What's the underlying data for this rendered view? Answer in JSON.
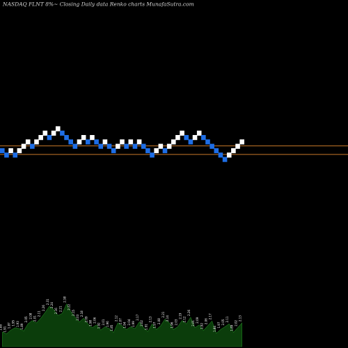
{
  "chart_data": {
    "type": "renko",
    "title": "NASDAQ FLNT 8%~  Closing Daily data  Renko  charts MunafaSutra.com",
    "y_unit": "brick steps",
    "bricks": [
      {
        "level": 0,
        "dir": "down"
      },
      {
        "level": -1,
        "dir": "down"
      },
      {
        "level": 0,
        "dir": "up"
      },
      {
        "level": -1,
        "dir": "down"
      },
      {
        "level": 0,
        "dir": "up"
      },
      {
        "level": 1,
        "dir": "up"
      },
      {
        "level": 2,
        "dir": "up"
      },
      {
        "level": 1,
        "dir": "down"
      },
      {
        "level": 2,
        "dir": "up"
      },
      {
        "level": 3,
        "dir": "up"
      },
      {
        "level": 4,
        "dir": "up"
      },
      {
        "level": 3,
        "dir": "down"
      },
      {
        "level": 4,
        "dir": "up"
      },
      {
        "level": 5,
        "dir": "up"
      },
      {
        "level": 4,
        "dir": "down"
      },
      {
        "level": 3,
        "dir": "down"
      },
      {
        "level": 2,
        "dir": "down"
      },
      {
        "level": 1,
        "dir": "down"
      },
      {
        "level": 2,
        "dir": "up"
      },
      {
        "level": 3,
        "dir": "up"
      },
      {
        "level": 2,
        "dir": "down"
      },
      {
        "level": 3,
        "dir": "up"
      },
      {
        "level": 2,
        "dir": "down"
      },
      {
        "level": 1,
        "dir": "down"
      },
      {
        "level": 2,
        "dir": "up"
      },
      {
        "level": 1,
        "dir": "down"
      },
      {
        "level": 0,
        "dir": "down"
      },
      {
        "level": 1,
        "dir": "up"
      },
      {
        "level": 2,
        "dir": "up"
      },
      {
        "level": 1,
        "dir": "down"
      },
      {
        "level": 2,
        "dir": "up"
      },
      {
        "level": 1,
        "dir": "down"
      },
      {
        "level": 2,
        "dir": "up"
      },
      {
        "level": 1,
        "dir": "down"
      },
      {
        "level": 0,
        "dir": "down"
      },
      {
        "level": -1,
        "dir": "down"
      },
      {
        "level": 0,
        "dir": "up"
      },
      {
        "level": 1,
        "dir": "up"
      },
      {
        "level": 0,
        "dir": "down"
      },
      {
        "level": 1,
        "dir": "up"
      },
      {
        "level": 2,
        "dir": "up"
      },
      {
        "level": 3,
        "dir": "up"
      },
      {
        "level": 4,
        "dir": "up"
      },
      {
        "level": 3,
        "dir": "down"
      },
      {
        "level": 2,
        "dir": "down"
      },
      {
        "level": 3,
        "dir": "up"
      },
      {
        "level": 4,
        "dir": "up"
      },
      {
        "level": 3,
        "dir": "down"
      },
      {
        "level": 2,
        "dir": "down"
      },
      {
        "level": 1,
        "dir": "down"
      },
      {
        "level": 0,
        "dir": "down"
      },
      {
        "level": -1,
        "dir": "down"
      },
      {
        "level": -2,
        "dir": "down"
      },
      {
        "level": -1,
        "dir": "up"
      },
      {
        "level": 0,
        "dir": "up"
      },
      {
        "level": 1,
        "dir": "up"
      },
      {
        "level": 2,
        "dir": "up"
      }
    ],
    "reference_lines": [
      {
        "level": 1.1,
        "color": "#c8782a"
      },
      {
        "level": -0.85,
        "color": "#c8782a"
      }
    ],
    "volume_labels": [
      "1.88",
      "1.91",
      "1.87",
      "1.95",
      "1.93",
      "1.89",
      "2.05",
      "2.08",
      "2.01",
      "2.11",
      "2.26",
      "2.31",
      "2.24",
      "2.16",
      "2.21",
      "2.38",
      "2.22",
      "2.15",
      "2.03",
      "2.18",
      "2.09",
      "1.98",
      "2.06",
      "1.92",
      "2.01",
      "1.96",
      "1.85",
      "2.12",
      "2.07",
      "1.94",
      "2.04",
      "1.99",
      "2.17",
      "2.02",
      "1.91",
      "2.13",
      "1.97",
      "2.08",
      "2.21",
      "2.14",
      "1.96",
      "2.03",
      "2.19",
      "2.12",
      "2.26",
      "2.01",
      "2.09",
      "1.92",
      "2.06",
      "2.17",
      "1.84",
      "1.97",
      "2.05",
      "2.11",
      "1.89",
      "2.02",
      "2.13"
    ],
    "volume_values": [
      0.31,
      0.27,
      0.35,
      0.4,
      0.38,
      0.33,
      0.48,
      0.55,
      0.5,
      0.6,
      0.72,
      0.85,
      0.78,
      0.66,
      0.7,
      0.9,
      0.74,
      0.62,
      0.52,
      0.6,
      0.48,
      0.4,
      0.46,
      0.35,
      0.42,
      0.38,
      0.3,
      0.5,
      0.44,
      0.36,
      0.42,
      0.38,
      0.52,
      0.4,
      0.32,
      0.48,
      0.36,
      0.44,
      0.58,
      0.5,
      0.36,
      0.42,
      0.55,
      0.48,
      0.62,
      0.4,
      0.46,
      0.34,
      0.44,
      0.54,
      0.28,
      0.36,
      0.42,
      0.48,
      0.3,
      0.4,
      0.5
    ],
    "colors": {
      "up_brick": "#ffffff",
      "down_brick": "#1e6ee6",
      "volume_fill": "#0b3d0b",
      "volume_line": "#1f7a1f",
      "background": "#000000"
    }
  }
}
